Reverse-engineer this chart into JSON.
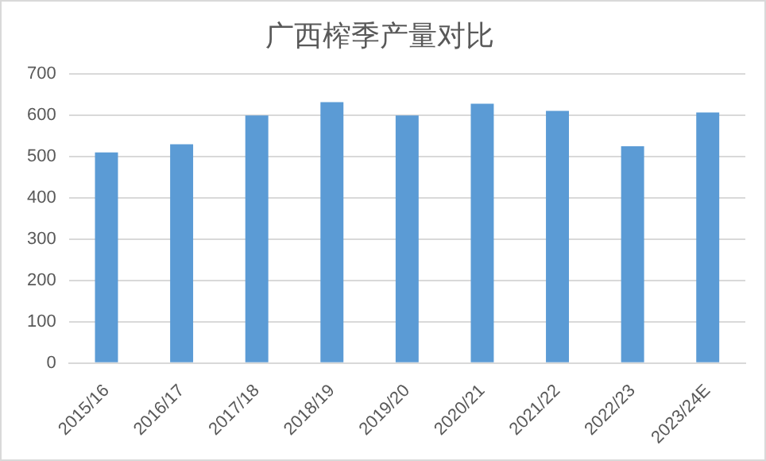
{
  "chart_data": {
    "type": "bar",
    "title": "广西榨季产量对比",
    "categories": [
      "2015/16",
      "2016/17",
      "2017/18",
      "2018/19",
      "2019/20",
      "2020/21",
      "2021/22",
      "2022/23",
      "2023/24E"
    ],
    "values": [
      510,
      530,
      600,
      632,
      600,
      628,
      611,
      525,
      607
    ],
    "color": "#5b9bd5",
    "ylim": [
      0,
      700
    ],
    "yticks": [
      0,
      100,
      200,
      300,
      400,
      500,
      600,
      700
    ],
    "grid": "y",
    "legend": false
  }
}
